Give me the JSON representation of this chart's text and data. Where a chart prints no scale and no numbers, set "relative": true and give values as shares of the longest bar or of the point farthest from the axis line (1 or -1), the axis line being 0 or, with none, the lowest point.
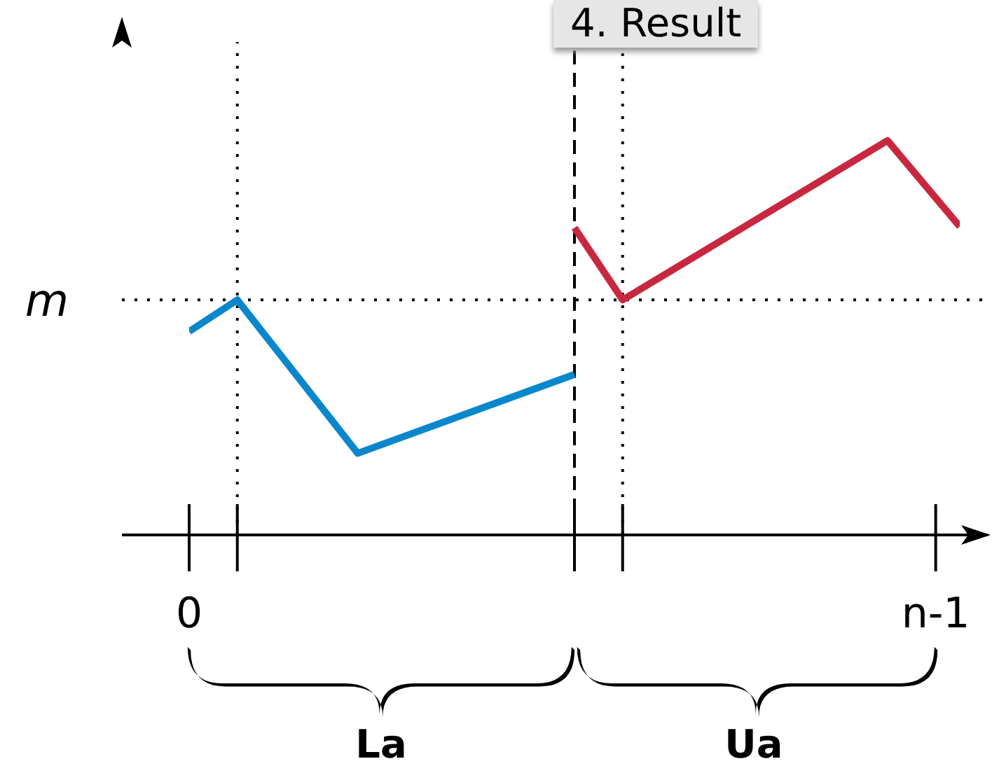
{
  "chart_data": {
    "type": "line",
    "title": "4. Result",
    "relative": true,
    "marker": "none",
    "line_style": "solid",
    "grid": "x",
    "categories": [
      "0",
      null,
      null,
      null,
      null,
      null,
      null,
      null,
      null,
      null,
      null,
      null,
      null,
      null,
      null,
      null,
      null,
      null,
      null,
      null,
      null,
      null,
      null,
      null,
      null,
      null,
      null,
      null,
      null,
      null,
      null,
      "n-1",
      null
    ],
    "series": [
      {
        "color": "#0a87cc",
        "values": [
          0.516,
          null,
          0.596,
          null,
          null,
          null,
          null,
          0.207,
          null,
          null,
          null,
          null,
          null,
          null,
          null,
          null,
          0.407,
          null,
          null,
          null,
          null,
          null,
          null,
          null,
          null,
          null,
          null,
          null,
          null,
          null,
          null,
          null,
          null
        ]
      },
      {
        "color": "#c8283f",
        "values": [
          null,
          null,
          null,
          null,
          null,
          null,
          null,
          null,
          null,
          null,
          null,
          null,
          null,
          null,
          null,
          null,
          0.779,
          null,
          0.596,
          null,
          null,
          null,
          null,
          null,
          null,
          null,
          null,
          null,
          null,
          1,
          null,
          null,
          0.782
        ]
      }
    ],
    "ref_lines": [
      {
        "axis": "y",
        "value": 0.596,
        "label": "m",
        "line_style": "dotted"
      }
    ],
    "annotations": [
      "La",
      "Ua"
    ]
  }
}
